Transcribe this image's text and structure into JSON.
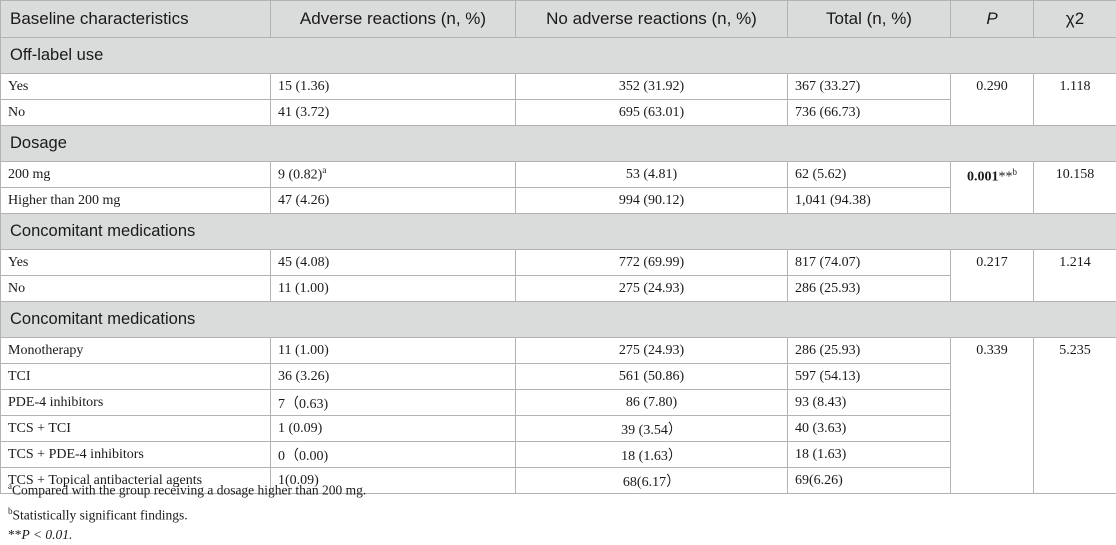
{
  "header": {
    "col1": "Baseline characteristics",
    "col2": "Adverse reactions (n, %)",
    "col3": "No adverse reactions (n, %)",
    "col4": "Total (n, %)",
    "col5": "P",
    "col6": "χ2"
  },
  "sections": [
    {
      "title": "Off-label use",
      "p": "0.290",
      "chi2": "1.118",
      "rows": [
        {
          "label": "Yes",
          "ar": "15 (1.36)",
          "nar": "352 (31.92)",
          "total": "367 (33.27)"
        },
        {
          "label": "No",
          "ar": "41 (3.72)",
          "nar": "695 (63.01)",
          "total": "736 (66.73)"
        }
      ]
    },
    {
      "title": "Dosage",
      "p": "0.001",
      "p_suffix": "**",
      "p_sup": "b",
      "chi2": "10.158",
      "rows": [
        {
          "label": "200 mg",
          "ar": "9 (0.82)",
          "ar_sup": "a",
          "nar": "53 (4.81)",
          "total": "62 (5.62)"
        },
        {
          "label": "Higher than 200 mg",
          "ar": "47 (4.26)",
          "nar": "994 (90.12)",
          "total": "1,041 (94.38)"
        }
      ]
    },
    {
      "title": "Concomitant medications",
      "p": "0.217",
      "chi2": "1.214",
      "rows": [
        {
          "label": "Yes",
          "ar": "45 (4.08)",
          "nar": "772 (69.99)",
          "total": "817 (74.07)"
        },
        {
          "label": "No",
          "ar": "11 (1.00)",
          "nar": "275 (24.93)",
          "total": "286 (25.93)"
        }
      ]
    },
    {
      "title": "Concomitant medications",
      "p": "0.339",
      "chi2": "5.235",
      "rows": [
        {
          "label": "Monotherapy",
          "ar": "11 (1.00)",
          "nar": "275 (24.93)",
          "total": "286 (25.93)"
        },
        {
          "label": "TCI",
          "ar": "36 (3.26)",
          "nar": "561 (50.86)",
          "total": "597 (54.13)"
        },
        {
          "label": "PDE-4 inhibitors",
          "ar": "7（0.63)",
          "nar": "86 (7.80)",
          "total": "93 (8.43)"
        },
        {
          "label": "TCS + TCI",
          "ar": "1 (0.09)",
          "nar": "39 (3.54）",
          "total": "40 (3.63)"
        },
        {
          "label": "TCS + PDE-4 inhibitors",
          "ar": "0（0.00)",
          "nar": "18 (1.63）",
          "total": "18 (1.63)"
        },
        {
          "label": "TCS + Topical antibacterial agents",
          "ar": "1(0.09)",
          "nar": "68(6.17）",
          "total": "69(6.26)"
        }
      ]
    }
  ],
  "footnotes": {
    "a_mark": "a",
    "a_text": "Compared with the group receiving a dosage higher than 200 mg.",
    "b_mark": "b",
    "b_text": "Statistically significant findings.",
    "c_mark": "**",
    "c_text": "P < 0.01."
  }
}
